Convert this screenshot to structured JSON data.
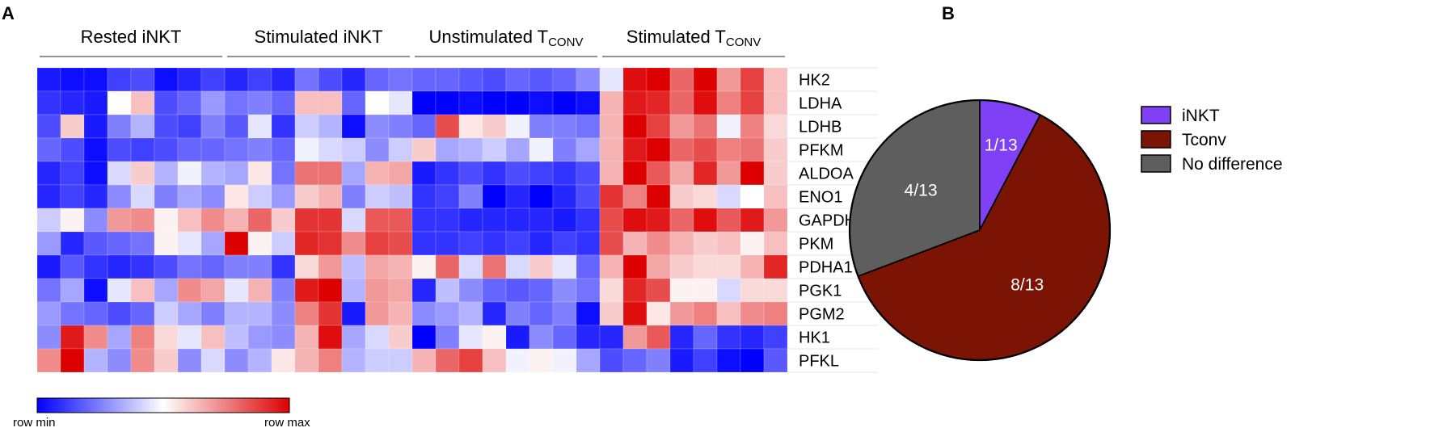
{
  "figure": {
    "panel_a_letter": "A",
    "panel_b_letter": "B"
  },
  "chart_data": [
    {
      "type": "heatmap",
      "panel": "A",
      "group_labels": [
        {
          "main": "Rested iNKT",
          "sub": ""
        },
        {
          "main": "Stimulated iNKT",
          "sub": ""
        },
        {
          "main": "Unstimulated T",
          "sub": "CONV"
        },
        {
          "main": "Stimulated T",
          "sub": "CONV"
        }
      ],
      "group_sizes": [
        8,
        8,
        8,
        8
      ],
      "rows": [
        "HK2",
        "LDHA",
        "LDHB",
        "PFKM",
        "ALDOA",
        "ENO1",
        "GAPDH",
        "PKM",
        "PDHA1",
        "PGK1",
        "PGM2",
        "HK1",
        "PFKL"
      ],
      "value_scale": "row-normalized, -1 = row min, +1 = row max",
      "colorbar": {
        "min_label": "row min",
        "max_label": "row max",
        "colors": [
          "#0000ff",
          "#ffffff",
          "#dd0000"
        ]
      },
      "values": [
        [
          -0.9,
          -0.95,
          -0.95,
          -0.75,
          -0.7,
          -0.95,
          -0.85,
          -0.75,
          -0.85,
          -0.75,
          -0.85,
          -0.55,
          -0.7,
          -0.85,
          -0.6,
          -0.55,
          -0.6,
          -0.6,
          -0.65,
          -0.7,
          -0.6,
          -0.65,
          -0.6,
          -0.45,
          -0.1,
          0.95,
          1.0,
          0.6,
          1.0,
          0.4,
          0.75,
          0.25
        ],
        [
          -0.8,
          -0.85,
          -0.9,
          0.0,
          0.25,
          -0.7,
          -0.6,
          -0.4,
          -0.55,
          -0.5,
          -0.6,
          0.25,
          0.25,
          -0.6,
          0.0,
          -0.1,
          -1.0,
          -1.0,
          -0.95,
          -1.0,
          -1.0,
          -0.95,
          -1.0,
          -0.95,
          0.3,
          0.9,
          0.85,
          0.6,
          0.95,
          0.5,
          0.75,
          0.25
        ],
        [
          -0.7,
          0.2,
          -0.9,
          -0.5,
          -0.3,
          -0.7,
          -0.75,
          -0.5,
          -0.65,
          -0.1,
          -0.8,
          -0.2,
          -0.3,
          -0.95,
          -0.45,
          -0.5,
          -0.6,
          0.7,
          0.1,
          0.2,
          -0.05,
          -0.5,
          -0.5,
          -0.55,
          0.3,
          1.0,
          0.75,
          0.4,
          0.55,
          -0.05,
          0.5,
          0.15
        ],
        [
          -0.6,
          -0.7,
          -0.95,
          -0.7,
          -0.75,
          -0.7,
          -0.6,
          -0.6,
          -0.55,
          -0.5,
          -0.6,
          -0.05,
          -0.15,
          -0.2,
          -0.45,
          -0.2,
          0.2,
          -0.35,
          -0.3,
          -0.2,
          -0.35,
          -0.05,
          -0.5,
          -0.35,
          0.3,
          0.9,
          1.0,
          0.6,
          0.7,
          0.5,
          0.55,
          0.2
        ],
        [
          -0.85,
          -0.75,
          -0.95,
          -0.15,
          0.2,
          -0.3,
          -0.05,
          -0.3,
          -0.35,
          0.1,
          -0.55,
          0.55,
          0.55,
          -0.35,
          0.3,
          0.35,
          -0.9,
          -0.8,
          -0.7,
          -0.8,
          -0.7,
          -0.75,
          -0.8,
          -0.7,
          0.3,
          1.0,
          0.65,
          0.35,
          0.85,
          0.4,
          1.0,
          0.2
        ],
        [
          -0.85,
          -0.75,
          -0.85,
          -0.45,
          -0.15,
          -0.5,
          -0.35,
          -0.45,
          0.1,
          -0.2,
          -0.4,
          0.2,
          0.3,
          -0.5,
          -0.2,
          -0.25,
          -0.8,
          -0.75,
          -0.5,
          -1.0,
          -0.85,
          -1.0,
          -0.85,
          -0.7,
          0.8,
          0.5,
          1.0,
          0.2,
          0.15,
          -0.15,
          0.0,
          0.25
        ],
        [
          -0.2,
          0.05,
          -0.45,
          0.4,
          0.45,
          0.05,
          0.25,
          0.45,
          0.3,
          0.6,
          0.2,
          0.8,
          0.8,
          -0.15,
          0.65,
          0.65,
          -0.8,
          -0.8,
          -0.85,
          -0.85,
          -0.85,
          -0.85,
          -0.9,
          -0.8,
          0.7,
          0.95,
          0.9,
          0.6,
          0.95,
          0.65,
          0.9,
          0.4
        ],
        [
          -0.4,
          -0.85,
          -0.65,
          -0.6,
          -0.55,
          0.05,
          -0.1,
          -0.35,
          1.0,
          0.05,
          -0.2,
          0.85,
          0.8,
          0.45,
          0.75,
          0.7,
          -0.8,
          -0.8,
          -0.75,
          -0.8,
          -0.75,
          -0.85,
          -0.75,
          -0.8,
          0.7,
          0.3,
          0.45,
          0.3,
          0.2,
          0.25,
          0.05,
          0.25
        ],
        [
          -0.9,
          -0.65,
          -0.8,
          -0.85,
          -0.8,
          -0.7,
          -0.55,
          -0.6,
          -0.5,
          -0.5,
          -0.8,
          0.15,
          0.4,
          -0.25,
          0.35,
          0.3,
          0.05,
          0.6,
          -0.15,
          0.55,
          -0.15,
          0.2,
          -0.1,
          -0.6,
          0.3,
          1.0,
          0.35,
          0.2,
          0.15,
          0.15,
          0.3,
          0.85
        ],
        [
          -0.55,
          -0.35,
          -0.95,
          -0.1,
          0.25,
          -0.35,
          0.45,
          0.35,
          -0.1,
          0.3,
          -0.5,
          0.9,
          1.0,
          -0.3,
          0.4,
          0.35,
          -0.85,
          -0.25,
          -0.45,
          -0.6,
          -0.65,
          -0.6,
          -0.45,
          -0.55,
          0.15,
          0.85,
          0.7,
          0.05,
          0.05,
          -0.15,
          0.15,
          0.15
        ],
        [
          -0.4,
          -0.55,
          -0.6,
          -0.7,
          -0.6,
          -0.2,
          -0.35,
          -0.5,
          -0.3,
          -0.3,
          -0.45,
          0.5,
          0.8,
          -0.9,
          0.4,
          0.3,
          -0.45,
          -0.4,
          -0.3,
          -0.85,
          -0.5,
          -0.6,
          -0.5,
          -0.95,
          0.2,
          0.95,
          0.1,
          0.4,
          0.5,
          0.25,
          0.45,
          0.5
        ],
        [
          -0.45,
          0.9,
          0.45,
          -0.35,
          0.5,
          0.15,
          -0.1,
          0.25,
          -0.25,
          -0.4,
          -0.45,
          0.3,
          0.95,
          -0.35,
          -0.15,
          0.2,
          -1.0,
          -0.5,
          -0.1,
          0.05,
          -0.9,
          -0.45,
          -0.6,
          -0.85,
          -0.85,
          0.4,
          0.65,
          -0.85,
          -0.6,
          -0.8,
          -0.85,
          -0.75
        ],
        [
          0.45,
          1.0,
          -0.3,
          -0.45,
          0.45,
          0.2,
          -0.45,
          -0.15,
          -0.45,
          -0.3,
          0.1,
          0.3,
          0.5,
          -0.3,
          -0.2,
          -0.2,
          0.3,
          0.6,
          0.75,
          0.25,
          -0.05,
          0.05,
          -0.05,
          -0.35,
          -0.7,
          -0.6,
          -0.5,
          -0.9,
          -0.75,
          -0.95,
          -1.0,
          -0.65
        ]
      ]
    },
    {
      "type": "pie",
      "panel": "B",
      "slices": [
        {
          "name": "iNKT",
          "value": 1,
          "label": "1/13",
          "color": "#8040f5"
        },
        {
          "name": "Tconv",
          "value": 8,
          "label": "8/13",
          "color": "#7b1405"
        },
        {
          "name": "No difference",
          "value": 4,
          "label": "4/13",
          "color": "#5e5e5e"
        }
      ],
      "total": 13,
      "start": "12 o'clock, clockwise",
      "legend_position": "right"
    }
  ]
}
